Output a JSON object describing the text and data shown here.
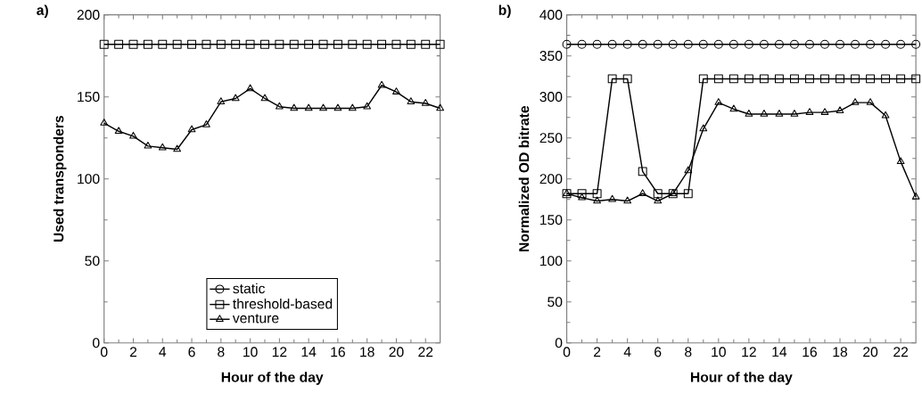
{
  "chart_data": [
    {
      "type": "line",
      "title": "a)",
      "xlabel": "Hour of the day",
      "ylabel": "Used transponders",
      "x": [
        0,
        1,
        2,
        3,
        4,
        5,
        6,
        7,
        8,
        9,
        10,
        11,
        12,
        13,
        14,
        15,
        16,
        17,
        18,
        19,
        20,
        21,
        22,
        23
      ],
      "xlim": [
        0,
        23
      ],
      "xticks": [
        0,
        2,
        4,
        6,
        8,
        10,
        12,
        14,
        16,
        18,
        20,
        22
      ],
      "ylim": [
        0,
        200
      ],
      "yticks": [
        0,
        50,
        100,
        150,
        200
      ],
      "legend": "bottom",
      "line_style": "solid",
      "series": [
        {
          "name": "static",
          "color": "#000000",
          "marker": "circle",
          "values": [
            null,
            null,
            null,
            null,
            null,
            null,
            null,
            null,
            null,
            null,
            null,
            null,
            null,
            null,
            null,
            null,
            null,
            null,
            null,
            null,
            null,
            null,
            null,
            null
          ]
        },
        {
          "name": "threshold-based",
          "color": "#000000",
          "marker": "square",
          "values": [
            182,
            182,
            182,
            182,
            182,
            182,
            182,
            182,
            182,
            182,
            182,
            182,
            182,
            182,
            182,
            182,
            182,
            182,
            182,
            182,
            182,
            182,
            182,
            182
          ]
        },
        {
          "name": "venture",
          "color": "#000000",
          "marker": "triangle",
          "values": [
            134,
            129,
            126,
            120,
            119,
            118,
            130,
            133,
            147,
            149,
            155,
            149,
            144,
            143,
            143,
            143,
            143,
            143,
            144,
            157,
            153,
            147,
            146,
            143
          ]
        }
      ]
    },
    {
      "type": "line",
      "title": "b)",
      "xlabel": "Hour of the day",
      "ylabel": "Normalized OD bitrate",
      "x": [
        0,
        1,
        2,
        3,
        4,
        5,
        6,
        7,
        8,
        9,
        10,
        11,
        12,
        13,
        14,
        15,
        16,
        17,
        18,
        19,
        20,
        21,
        22,
        23
      ],
      "xlim": [
        0,
        23
      ],
      "xticks": [
        0,
        2,
        4,
        6,
        8,
        10,
        12,
        14,
        16,
        18,
        20,
        22
      ],
      "ylim": [
        0,
        400
      ],
      "yticks": [
        0,
        50,
        100,
        150,
        200,
        250,
        300,
        350,
        400
      ],
      "line_style": "solid",
      "series": [
        {
          "color": "#000000",
          "marker": "circle",
          "values": [
            364,
            364,
            364,
            364,
            364,
            364,
            364,
            364,
            364,
            364,
            364,
            364,
            364,
            364,
            364,
            364,
            364,
            364,
            364,
            364,
            364,
            364,
            364,
            364
          ]
        },
        {
          "color": "#000000",
          "marker": "square",
          "values": [
            182,
            182,
            182,
            322,
            322,
            209,
            182,
            182,
            182,
            322,
            322,
            322,
            322,
            322,
            322,
            322,
            322,
            322,
            322,
            322,
            322,
            322,
            322,
            322
          ]
        },
        {
          "color": "#000000",
          "marker": "triangle",
          "values": [
            182,
            177,
            173,
            175,
            173,
            182,
            173,
            182,
            210,
            261,
            293,
            285,
            279,
            279,
            279,
            279,
            281,
            281,
            283,
            293,
            293,
            277,
            221,
            178
          ]
        }
      ]
    }
  ]
}
